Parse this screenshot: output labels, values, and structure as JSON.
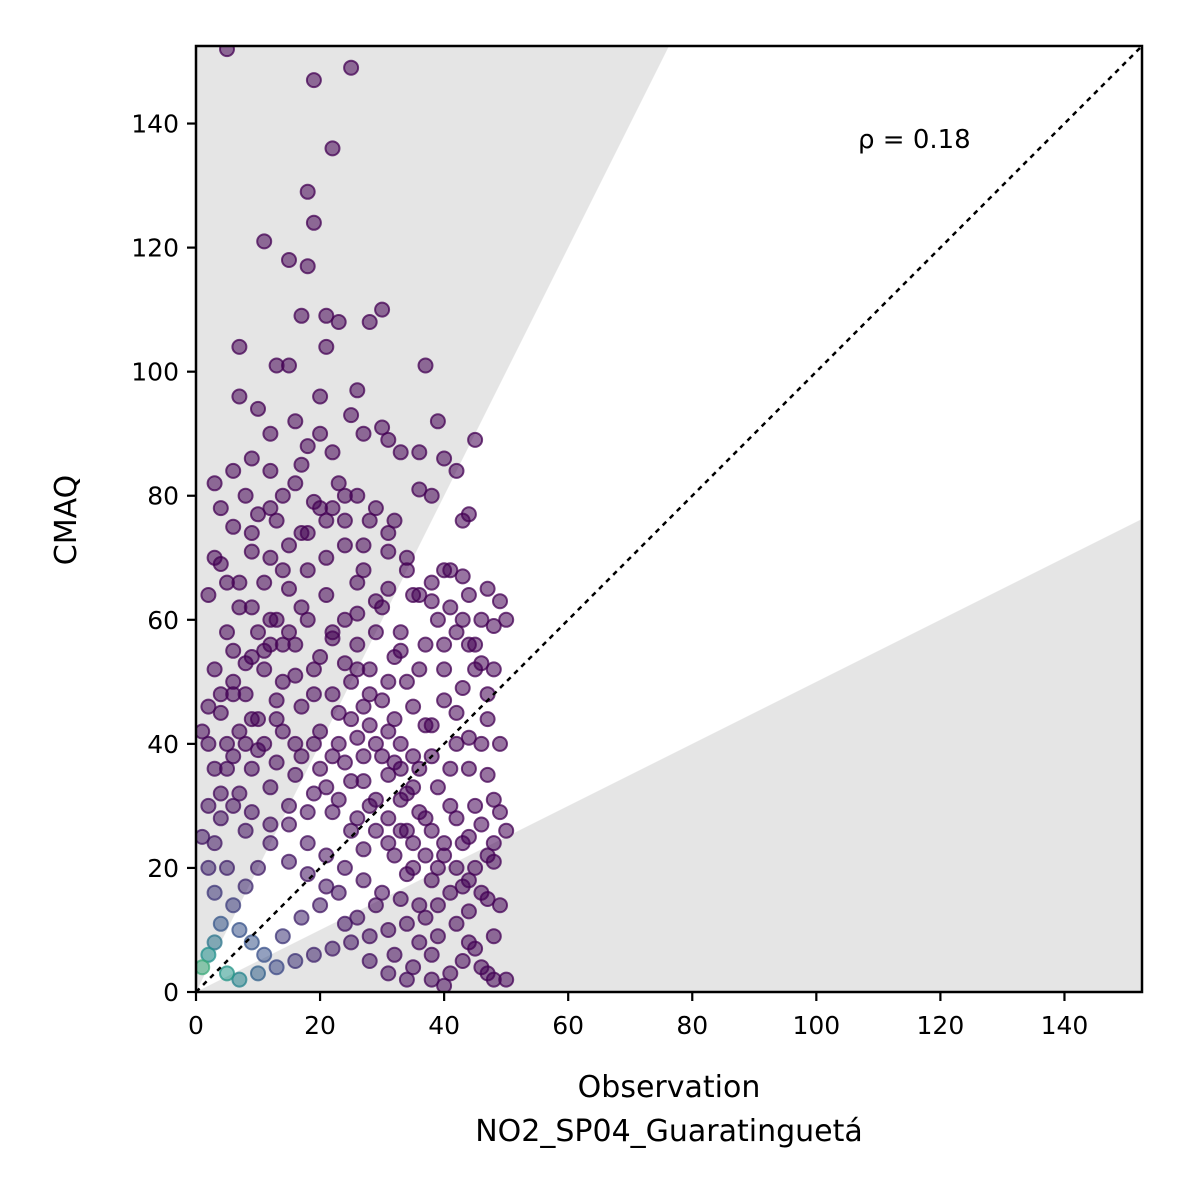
{
  "chart_data": {
    "type": "scatter",
    "xlabel": "Observation",
    "xlabel_sub": "NO2_SP04_Guaratinguetá",
    "ylabel": "CMAQ",
    "xlim": [
      0,
      152.5
    ],
    "ylim": [
      0,
      152.5
    ],
    "x_ticks": [
      "0",
      "20",
      "40",
      "60",
      "80",
      "100",
      "120",
      "140"
    ],
    "y_ticks": [
      "0",
      "20",
      "40",
      "60",
      "80",
      "100",
      "120",
      "140"
    ],
    "annotation": "ρ = 0.18",
    "grid": false,
    "reference_line": {
      "style": "dotted",
      "slope": 1,
      "color": "#000000"
    },
    "shaded_regions": [
      {
        "description": "factor of 2 overestimation band",
        "slope_min": 2,
        "color": "#e5e5e5"
      },
      {
        "description": "factor of 2 underestimation band",
        "slope_max": 0.5,
        "color": "#e5e5e5"
      }
    ],
    "point_colormap": [
      "#440154",
      "#3b528b",
      "#21918c",
      "#5ec962",
      "#fde725"
    ],
    "points": [
      [
        5,
        152
      ],
      [
        19,
        147
      ],
      [
        25,
        149
      ],
      [
        22,
        136
      ],
      [
        18,
        129
      ],
      [
        19,
        124
      ],
      [
        11,
        121
      ],
      [
        15,
        118
      ],
      [
        18,
        117
      ],
      [
        30,
        110
      ],
      [
        17,
        109
      ],
      [
        21,
        109
      ],
      [
        23,
        108
      ],
      [
        28,
        108
      ],
      [
        21,
        104
      ],
      [
        7,
        104
      ],
      [
        13,
        101
      ],
      [
        15,
        101
      ],
      [
        37,
        101
      ],
      [
        7,
        96
      ],
      [
        20,
        96
      ],
      [
        26,
        97
      ],
      [
        25,
        93
      ],
      [
        39,
        92
      ],
      [
        30,
        91
      ],
      [
        45,
        89
      ],
      [
        18,
        88
      ],
      [
        36,
        81
      ],
      [
        38,
        80
      ],
      [
        44,
        77
      ],
      [
        43,
        76
      ],
      [
        32,
        76
      ],
      [
        27,
        72
      ],
      [
        31,
        71
      ],
      [
        22,
        78
      ],
      [
        40,
        68
      ],
      [
        43,
        67
      ],
      [
        44,
        64
      ],
      [
        47,
        65
      ],
      [
        34,
        68
      ],
      [
        38,
        63
      ],
      [
        35,
        64
      ],
      [
        49,
        63
      ],
      [
        50,
        60
      ],
      [
        48,
        59
      ],
      [
        42,
        58
      ],
      [
        40,
        56
      ],
      [
        46,
        53
      ],
      [
        36,
        52
      ],
      [
        33,
        55
      ],
      [
        45,
        52
      ],
      [
        43,
        49
      ],
      [
        47,
        48
      ],
      [
        40,
        47
      ],
      [
        42,
        45
      ],
      [
        38,
        43
      ],
      [
        44,
        41
      ],
      [
        46,
        40
      ],
      [
        32,
        44
      ],
      [
        35,
        38
      ],
      [
        41,
        36
      ],
      [
        47,
        35
      ],
      [
        48,
        31
      ],
      [
        49,
        29
      ],
      [
        46,
        27
      ],
      [
        44,
        25
      ],
      [
        50,
        26
      ],
      [
        48,
        21
      ],
      [
        45,
        20
      ],
      [
        43,
        17
      ],
      [
        47,
        15
      ],
      [
        49,
        14
      ],
      [
        44,
        13
      ],
      [
        42,
        11
      ],
      [
        48,
        9
      ],
      [
        45,
        7
      ],
      [
        43,
        5
      ],
      [
        47,
        3
      ],
      [
        50,
        2
      ],
      [
        41,
        3
      ],
      [
        39,
        9
      ],
      [
        38,
        6
      ],
      [
        36,
        14
      ],
      [
        34,
        19
      ],
      [
        35,
        24
      ],
      [
        37,
        28
      ],
      [
        33,
        31
      ],
      [
        31,
        35
      ],
      [
        30,
        38
      ],
      [
        28,
        43
      ],
      [
        27,
        46
      ],
      [
        25,
        50
      ],
      [
        24,
        53
      ],
      [
        22,
        57
      ],
      [
        26,
        61
      ],
      [
        29,
        63
      ],
      [
        31,
        65
      ],
      [
        15,
        65
      ],
      [
        12,
        70
      ],
      [
        9,
        71
      ],
      [
        6,
        75
      ],
      [
        10,
        77
      ],
      [
        14,
        80
      ],
      [
        12,
        84
      ],
      [
        9,
        86
      ],
      [
        12,
        90
      ],
      [
        10,
        94
      ],
      [
        16,
        92
      ],
      [
        20,
        90
      ],
      [
        22,
        87
      ],
      [
        17,
        85
      ],
      [
        4,
        78
      ],
      [
        3,
        82
      ],
      [
        6,
        84
      ],
      [
        2,
        64
      ],
      [
        4,
        69
      ],
      [
        7,
        66
      ],
      [
        12,
        60
      ],
      [
        17,
        62
      ],
      [
        22,
        58
      ],
      [
        20,
        54
      ],
      [
        16,
        51
      ],
      [
        13,
        47
      ],
      [
        9,
        44
      ],
      [
        5,
        40
      ],
      [
        3,
        36
      ],
      [
        2,
        30
      ],
      [
        1,
        25
      ],
      [
        6,
        48
      ],
      [
        8,
        53
      ],
      [
        11,
        55
      ],
      [
        14,
        56
      ],
      [
        19,
        48
      ],
      [
        23,
        45
      ],
      [
        26,
        41
      ],
      [
        24,
        37
      ],
      [
        21,
        33
      ],
      [
        18,
        29
      ],
      [
        15,
        27
      ],
      [
        12,
        24
      ],
      [
        10,
        20
      ],
      [
        8,
        17
      ],
      [
        6,
        14
      ],
      [
        4,
        11
      ],
      [
        3,
        8
      ],
      [
        2,
        6
      ],
      [
        1,
        4
      ],
      [
        5,
        3
      ],
      [
        7,
        2
      ],
      [
        10,
        3
      ],
      [
        13,
        4
      ],
      [
        16,
        5
      ],
      [
        19,
        6
      ],
      [
        22,
        7
      ],
      [
        25,
        8
      ],
      [
        28,
        9
      ],
      [
        31,
        10
      ],
      [
        34,
        11
      ],
      [
        37,
        12
      ],
      [
        39,
        14
      ],
      [
        30,
        16
      ],
      [
        27,
        18
      ],
      [
        24,
        20
      ],
      [
        21,
        22
      ],
      [
        18,
        24
      ],
      [
        15,
        30
      ],
      [
        12,
        33
      ],
      [
        9,
        36
      ],
      [
        11,
        40
      ],
      [
        14,
        42
      ],
      [
        17,
        38
      ],
      [
        20,
        36
      ],
      [
        23,
        31
      ],
      [
        26,
        28
      ],
      [
        29,
        26
      ],
      [
        32,
        22
      ],
      [
        35,
        20
      ],
      [
        38,
        18
      ],
      [
        40,
        22
      ],
      [
        42,
        28
      ],
      [
        39,
        33
      ],
      [
        36,
        36
      ],
      [
        33,
        40
      ],
      [
        30,
        47
      ],
      [
        28,
        52
      ],
      [
        26,
        56
      ],
      [
        24,
        60
      ],
      [
        21,
        64
      ],
      [
        18,
        68
      ],
      [
        15,
        72
      ],
      [
        13,
        76
      ],
      [
        8,
        80
      ],
      [
        5,
        58
      ],
      [
        3,
        52
      ],
      [
        2,
        46
      ],
      [
        1,
        42
      ],
      [
        4,
        28
      ],
      [
        6,
        30
      ],
      [
        8,
        26
      ],
      [
        5,
        20
      ],
      [
        3,
        16
      ],
      [
        7,
        10
      ],
      [
        9,
        8
      ],
      [
        11,
        6
      ],
      [
        14,
        9
      ],
      [
        17,
        12
      ],
      [
        20,
        14
      ],
      [
        23,
        16
      ],
      [
        26,
        12
      ],
      [
        29,
        14
      ],
      [
        32,
        6
      ],
      [
        35,
        4
      ],
      [
        38,
        2
      ],
      [
        40,
        1
      ],
      [
        36,
        8
      ],
      [
        33,
        15
      ],
      [
        27,
        23
      ],
      [
        25,
        26
      ],
      [
        22,
        29
      ],
      [
        19,
        32
      ],
      [
        16,
        35
      ],
      [
        13,
        37
      ],
      [
        10,
        39
      ],
      [
        7,
        42
      ],
      [
        4,
        45
      ],
      [
        6,
        55
      ],
      [
        9,
        62
      ],
      [
        11,
        66
      ],
      [
        14,
        68
      ],
      [
        18,
        74
      ],
      [
        21,
        76
      ],
      [
        24,
        72
      ],
      [
        27,
        68
      ],
      [
        30,
        62
      ],
      [
        33,
        58
      ],
      [
        31,
        50
      ],
      [
        35,
        46
      ],
      [
        37,
        43
      ],
      [
        34,
        32
      ],
      [
        36,
        29
      ],
      [
        38,
        26
      ],
      [
        40,
        24
      ],
      [
        42,
        20
      ],
      [
        44,
        18
      ],
      [
        46,
        16
      ],
      [
        48,
        24
      ],
      [
        42,
        40
      ],
      [
        44,
        36
      ],
      [
        40,
        52
      ],
      [
        44,
        56
      ],
      [
        46,
        60
      ],
      [
        48,
        52
      ],
      [
        23,
        40
      ],
      [
        27,
        34
      ],
      [
        29,
        31
      ],
      [
        31,
        28
      ],
      [
        33,
        26
      ],
      [
        20,
        42
      ],
      [
        17,
        46
      ],
      [
        14,
        50
      ],
      [
        11,
        52
      ],
      [
        8,
        48
      ],
      [
        5,
        36
      ],
      [
        7,
        32
      ],
      [
        9,
        29
      ],
      [
        12,
        27
      ],
      [
        15,
        21
      ],
      [
        18,
        19
      ],
      [
        21,
        17
      ],
      [
        24,
        11
      ],
      [
        28,
        5
      ],
      [
        31,
        3
      ],
      [
        34,
        2
      ],
      [
        29,
        40
      ],
      [
        32,
        37
      ],
      [
        27,
        38
      ],
      [
        25,
        44
      ],
      [
        22,
        48
      ],
      [
        19,
        52
      ],
      [
        16,
        56
      ],
      [
        13,
        60
      ],
      [
        10,
        58
      ],
      [
        7,
        62
      ],
      [
        5,
        66
      ],
      [
        3,
        70
      ],
      [
        9,
        74
      ],
      [
        12,
        78
      ],
      [
        16,
        82
      ],
      [
        19,
        79
      ],
      [
        23,
        82
      ],
      [
        28,
        76
      ],
      [
        26,
        66
      ],
      [
        29,
        58
      ],
      [
        32,
        54
      ],
      [
        34,
        50
      ],
      [
        37,
        56
      ],
      [
        39,
        60
      ],
      [
        41,
        62
      ],
      [
        43,
        60
      ],
      [
        45,
        56
      ],
      [
        47,
        44
      ],
      [
        49,
        40
      ],
      [
        45,
        30
      ],
      [
        47,
        22
      ],
      [
        43,
        24
      ],
      [
        41,
        30
      ],
      [
        38,
        38
      ],
      [
        35,
        33
      ],
      [
        33,
        36
      ],
      [
        31,
        42
      ],
      [
        28,
        48
      ],
      [
        26,
        52
      ],
      [
        36,
        64
      ],
      [
        38,
        66
      ],
      [
        41,
        68
      ],
      [
        34,
        70
      ],
      [
        31,
        74
      ],
      [
        29,
        78
      ],
      [
        26,
        80
      ],
      [
        24,
        76
      ],
      [
        21,
        70
      ],
      [
        18,
        60
      ],
      [
        15,
        58
      ],
      [
        12,
        56
      ],
      [
        9,
        54
      ],
      [
        6,
        50
      ],
      [
        4,
        48
      ],
      [
        2,
        40
      ],
      [
        2,
        20
      ],
      [
        3,
        24
      ],
      [
        4,
        32
      ],
      [
        6,
        38
      ],
      [
        8,
        40
      ],
      [
        10,
        44
      ],
      [
        13,
        44
      ],
      [
        16,
        40
      ],
      [
        19,
        40
      ],
      [
        22,
        38
      ],
      [
        25,
        34
      ],
      [
        28,
        30
      ],
      [
        31,
        24
      ],
      [
        34,
        26
      ],
      [
        37,
        22
      ],
      [
        39,
        20
      ],
      [
        41,
        16
      ],
      [
        44,
        8
      ],
      [
        46,
        4
      ],
      [
        48,
        2
      ],
      [
        27,
        90
      ],
      [
        33,
        87
      ],
      [
        40,
        86
      ],
      [
        42,
        84
      ],
      [
        36,
        87
      ],
      [
        31,
        89
      ],
      [
        24,
        80
      ],
      [
        20,
        78
      ],
      [
        17,
        74
      ]
    ]
  }
}
